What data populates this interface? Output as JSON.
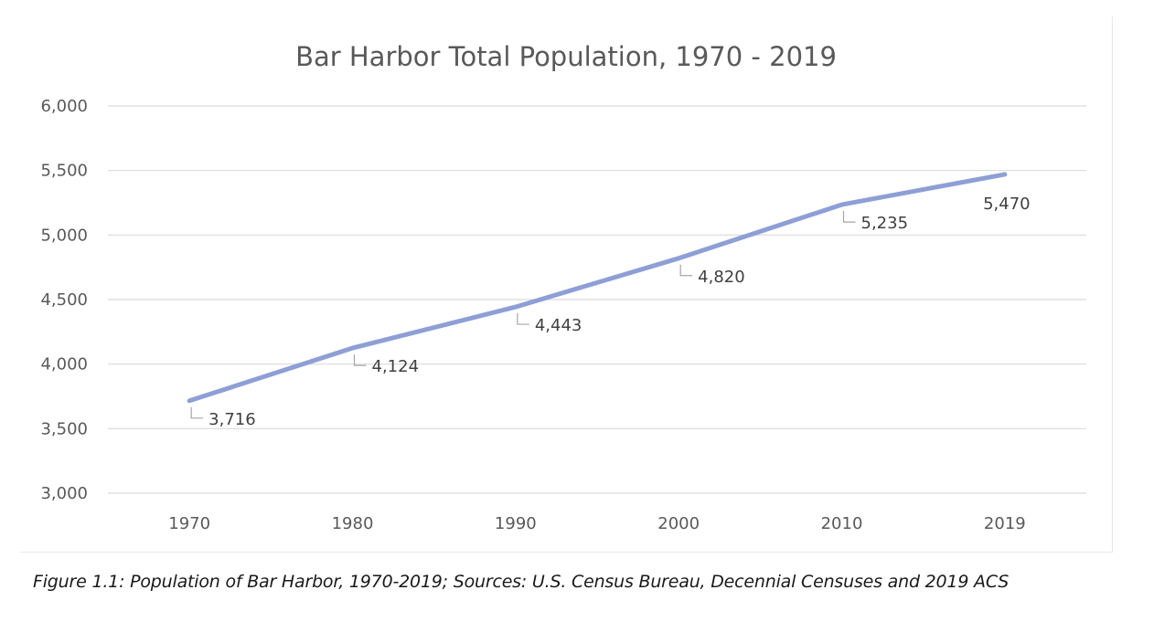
{
  "chart_data": {
    "type": "line",
    "title": "Bar Harbor Total Population, 1970 - 2019",
    "xlabel": "",
    "ylabel": "",
    "categories": [
      "1970",
      "1980",
      "1990",
      "2000",
      "2010",
      "2019"
    ],
    "series": [
      {
        "values": [
          3716,
          4124,
          4443,
          4820,
          5235,
          5470
        ]
      }
    ],
    "data_labels": [
      "3,716",
      "4,124",
      "4,443",
      "4,820",
      "5,235",
      "5,470"
    ],
    "y_ticks": [
      "3,000",
      "3,500",
      "4,000",
      "4,500",
      "5,000",
      "5,500",
      "6,000"
    ],
    "ylim": [
      3000,
      6000
    ],
    "grid": true,
    "legend": "none",
    "colors": {
      "line": "#8e9fd6",
      "grid": "#d9d9d9",
      "text": "#595959",
      "leader": "#a6a6a6"
    }
  },
  "caption": "Figure 1.1: Population of Bar Harbor, 1970-2019; Sources: U.S. Census Bureau, Decennial Censuses and 2019 ACS"
}
